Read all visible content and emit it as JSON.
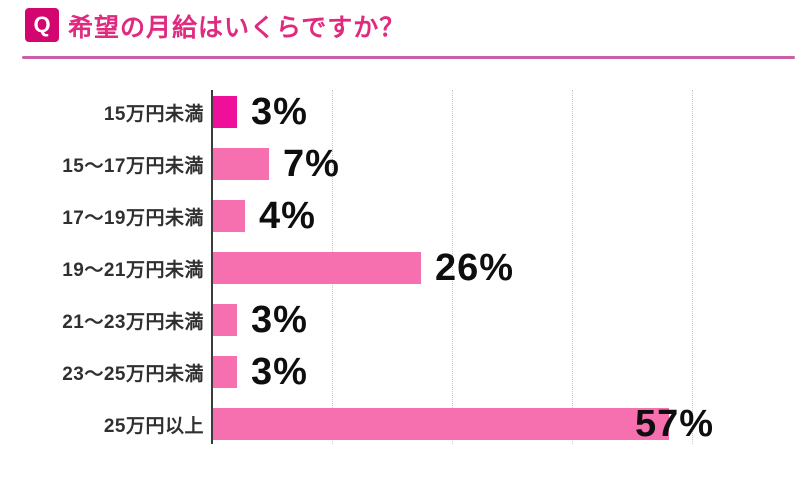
{
  "header": {
    "q_label": "Q",
    "title": "希望の月給はいくらですか？"
  },
  "colors": {
    "accent_title": "#e02a80",
    "badge_bg": "#d2066e",
    "bar_default": "#f66fae",
    "bar_highlight": "#ef0f9a",
    "divider": "#c95fa6",
    "axis": "#3b3b3b",
    "gridline": "#c6c6c6",
    "value_text": "#0e0e0e",
    "category_text": "#303030"
  },
  "chart_data": {
    "type": "bar",
    "orientation": "horizontal",
    "title": "希望の月給はいくらですか？",
    "xlabel": "",
    "ylabel": "",
    "unit": "%",
    "xlim": [
      0,
      60
    ],
    "grid_percents": [
      15,
      30,
      45,
      60
    ],
    "grid_style": "dotted-vertical",
    "legend": "none",
    "categories": [
      "15万円未満",
      "15〜17万円未満",
      "17〜19万円未満",
      "19〜21万円未満",
      "21〜23万円未満",
      "23〜25万円未満",
      "25万円以上"
    ],
    "values": [
      3,
      7,
      4,
      26,
      3,
      3,
      57
    ],
    "rows": [
      {
        "label": "15万円未満",
        "value": 3,
        "display": "3%",
        "color": "#ef0f9a"
      },
      {
        "label": "15〜17万円未満",
        "value": 7,
        "display": "7%",
        "color": "#f66fae"
      },
      {
        "label": "17〜19万円未満",
        "value": 4,
        "display": "4%",
        "color": "#f66fae"
      },
      {
        "label": "19〜21万円未満",
        "value": 26,
        "display": "26%",
        "color": "#f66fae"
      },
      {
        "label": "21〜23万円未満",
        "value": 3,
        "display": "3%",
        "color": "#f66fae"
      },
      {
        "label": "23〜25万円未満",
        "value": 3,
        "display": "3%",
        "color": "#f66fae"
      },
      {
        "label": "25万円以上",
        "value": 57,
        "display": "57%",
        "color": "#f66fae"
      }
    ]
  }
}
